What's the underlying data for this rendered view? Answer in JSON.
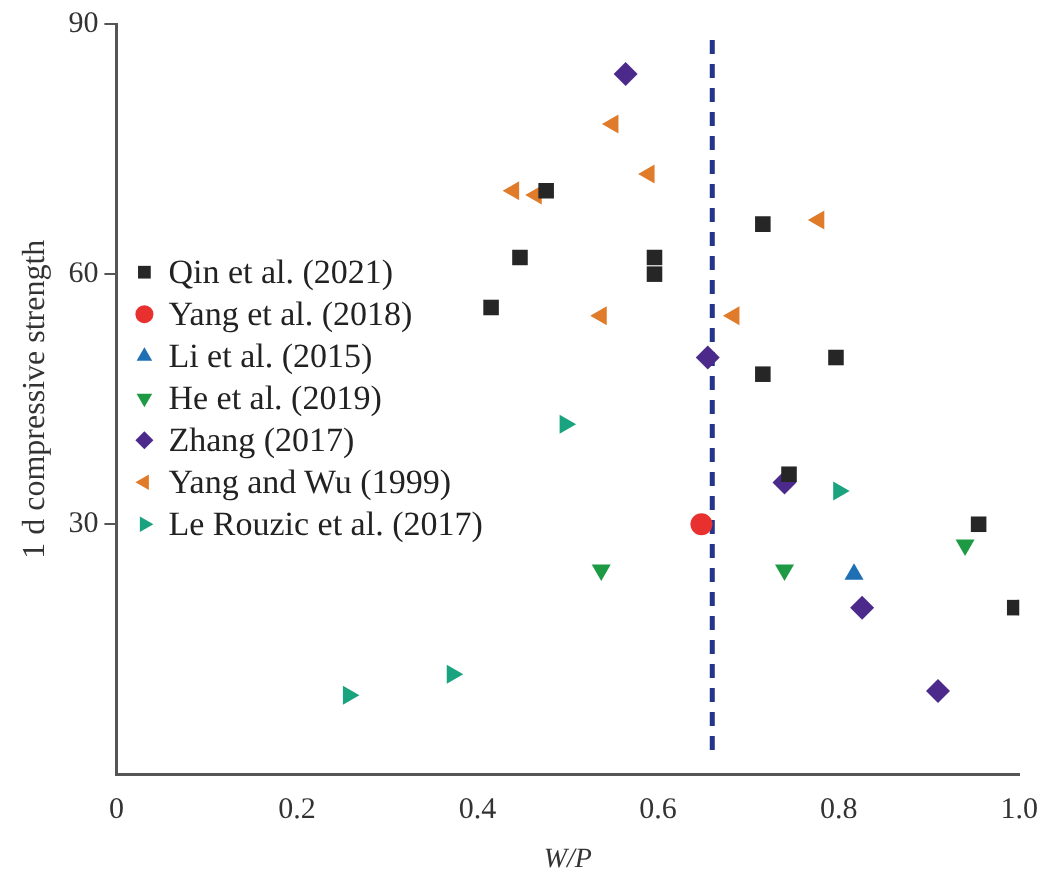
{
  "chart_data": {
    "type": "scatter",
    "xlabel": "W/P",
    "ylabel": "1 d compressive strength",
    "xlim": [
      0,
      1.0
    ],
    "xticks": [
      0,
      0.2,
      0.4,
      0.6,
      0.8,
      {
        "value": 1,
        "label": "1.0"
      }
    ],
    "ylim": [
      0,
      90
    ],
    "yticks": [
      30,
      60,
      90
    ],
    "grid": false,
    "legend": "left",
    "tick_labels": "xy",
    "series": [
      {
        "name": "Qin et al. (2021)",
        "color": "#262626",
        "marker": "square",
        "x": [
          0.415,
          0.447,
          0.476,
          0.596,
          0.596,
          0.716,
          0.716,
          0.797,
          0.745,
          0.955,
          0.995
        ],
        "values": [
          56,
          62,
          70,
          60,
          62,
          66,
          48,
          50,
          36,
          30,
          20
        ]
      },
      {
        "name": "Yang et al. (2018)",
        "color": "#e8312f",
        "marker": "circle",
        "x": [
          0.648
        ],
        "values": [
          30
        ]
      },
      {
        "name": "Li et al. (2015)",
        "color": "#1f6fb4",
        "marker": "triangle",
        "x": [
          0.817
        ],
        "values": [
          24
        ]
      },
      {
        "name": "He et al. (2019)",
        "color": "#1e9a45",
        "marker": "triangle_down",
        "x": [
          0.537,
          0.74,
          0.94
        ],
        "values": [
          24.5,
          24.5,
          27.5
        ]
      },
      {
        "name": "Zhang (2017)",
        "color": "#4b2a8c",
        "marker": "diamond",
        "x": [
          0.564,
          0.655,
          0.74,
          0.826,
          0.91
        ],
        "values": [
          84,
          50,
          35,
          20,
          10
        ]
      },
      {
        "name": "Yang and Wu (1999)",
        "color": "#e07b29",
        "marker": "triangle_left",
        "x": [
          0.44,
          0.465,
          0.55,
          0.59,
          0.778,
          0.537,
          0.684
        ],
        "values": [
          70,
          69.5,
          78,
          72,
          66.5,
          55,
          55
        ]
      },
      {
        "name": "Le Rouzic et al. (2017)",
        "color": "#1aa37f",
        "marker": "triangle_right",
        "x": [
          0.497,
          0.8,
          0.257,
          0.372
        ],
        "values": [
          42,
          34,
          9.5,
          12
        ]
      }
    ],
    "ref_lines": [
      {
        "axis": "x",
        "value": 0.66,
        "color": "#24348a",
        "line_style": "dashed"
      }
    ]
  }
}
